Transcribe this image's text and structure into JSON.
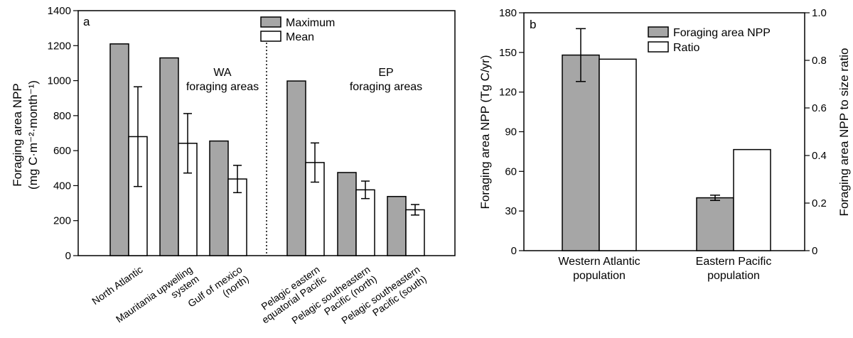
{
  "chart_data": [
    {
      "type": "bar",
      "panel_label": "a",
      "ylabel_lines": [
        "Foraging area NPP",
        "(mg C·m⁻²·month⁻¹)"
      ],
      "ylim": [
        0,
        1400
      ],
      "yticks": [
        0,
        200,
        400,
        600,
        800,
        1000,
        1200,
        1400
      ],
      "categories": [
        [
          "North Atlantic"
        ],
        [
          "Mauritania upwelling",
          "system"
        ],
        [
          "Gulf of mexico",
          "(north)"
        ],
        [
          "Pelagic eastern",
          "equatorial Pacific"
        ],
        [
          "Pelagic southeastern",
          "Pacific (north)"
        ],
        [
          "Pelagic southeastern",
          "Pacific (south)"
        ]
      ],
      "series": [
        {
          "name": "Maximum",
          "color": "#a6a6a6",
          "values": [
            1210,
            1130,
            655,
            998,
            475,
            338
          ]
        },
        {
          "name": "Mean",
          "color": "#ffffff",
          "values": [
            680,
            642,
            438,
            532,
            376,
            262
          ],
          "error": [
            285,
            170,
            78,
            112,
            50,
            30
          ]
        }
      ],
      "group_labels": [
        {
          "lines": [
            "WA",
            "foraging areas"
          ]
        },
        {
          "lines": [
            "EP",
            "foraging areas"
          ]
        }
      ],
      "legend": "top-center",
      "grid": false
    },
    {
      "type": "bar",
      "panel_label": "b",
      "ylabel_left": "Foraging area NPP (Tg C/yr)",
      "ylabel_right": "Foraging area NPP to size ratio",
      "ylim_left": [
        0,
        180
      ],
      "yticks_left": [
        0,
        30,
        60,
        90,
        120,
        150,
        180
      ],
      "ylim_right": [
        0,
        1.0
      ],
      "yticks_right": [
        "0",
        "0.2",
        "0.4",
        "0.6",
        "0.8",
        "1.0"
      ],
      "categories": [
        [
          "Western Atlantic",
          "population"
        ],
        [
          "Eastern Pacific",
          "population"
        ]
      ],
      "series": [
        {
          "name": "Foraging area NPP",
          "axis": "left",
          "color": "#a6a6a6",
          "values": [
            148,
            40
          ],
          "error": [
            20,
            2
          ]
        },
        {
          "name": "Ratio",
          "axis": "right",
          "color": "#ffffff",
          "values": [
            0.805,
            0.425
          ]
        }
      ],
      "legend": "top-right",
      "grid": false
    }
  ]
}
